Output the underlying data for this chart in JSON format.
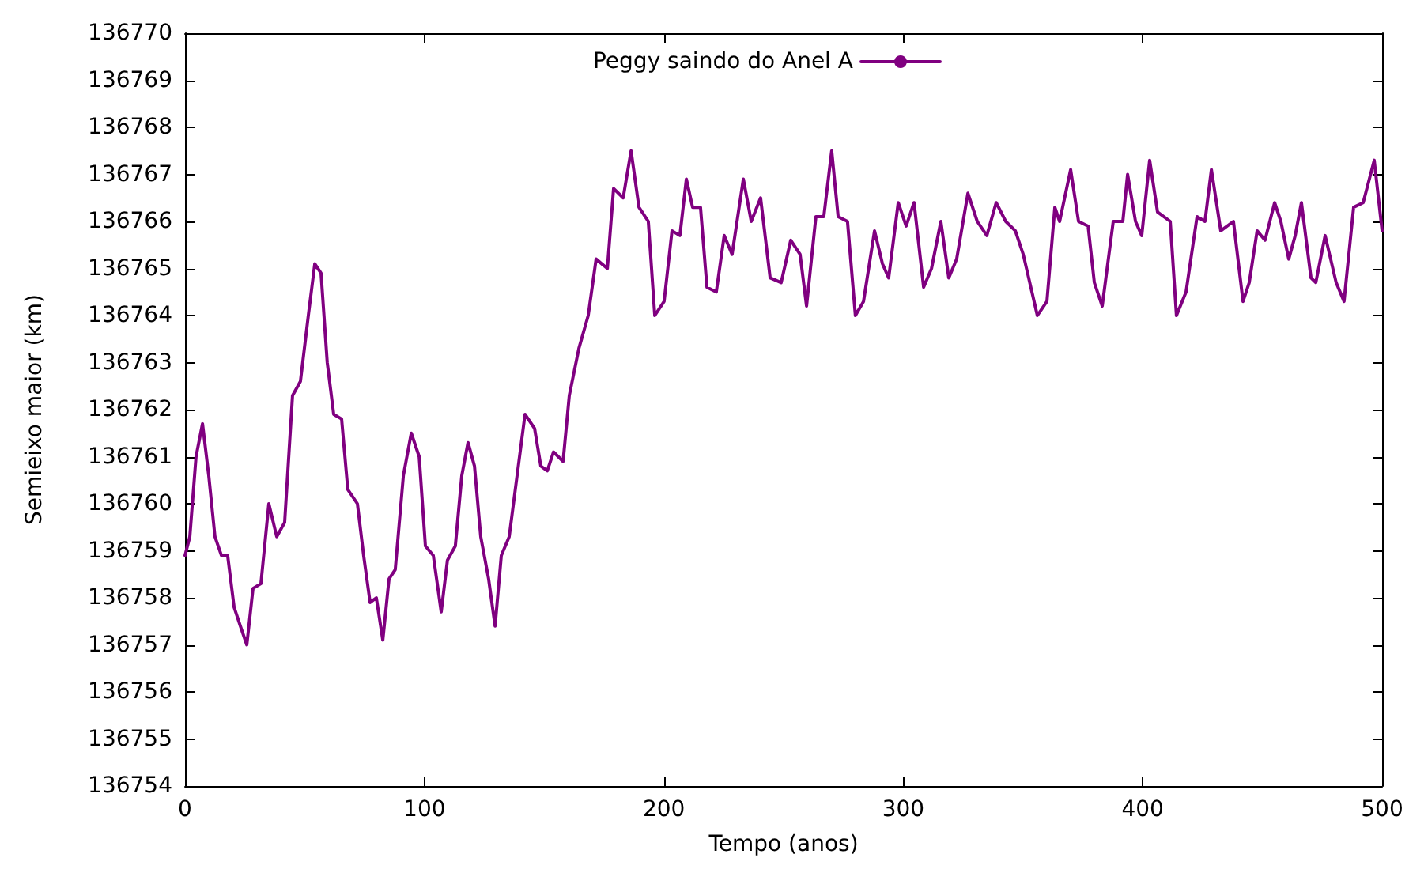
{
  "chart_data": {
    "type": "line",
    "xlabel": "Tempo (anos)",
    "ylabel": "Semieixo maior (km)",
    "xlim": [
      0,
      500
    ],
    "xticks": [
      0,
      100,
      200,
      300,
      400,
      500
    ],
    "ylim": [
      136754,
      136770
    ],
    "yticks": [
      136754,
      136755,
      136756,
      136757,
      136758,
      136759,
      136760,
      136761,
      136762,
      136763,
      136764,
      136765,
      136766,
      136767,
      136768,
      136769,
      136770
    ],
    "grid": false,
    "legend": "top",
    "marker": "none",
    "line_style": "solid",
    "series": [
      {
        "name": "Peggy saindo do Anel A",
        "color": "#800080",
        "x": [
          0,
          2,
          4.6,
          7.3,
          9.9,
          12.5,
          15.2,
          17.8,
          20.5,
          23.1,
          25.8,
          28.4,
          31.7,
          35,
          38.3,
          41.6,
          44.9,
          48.2,
          51.5,
          54.2,
          56.8,
          59.4,
          62.1,
          65.4,
          68,
          72,
          74.6,
          77.3,
          79.9,
          82.6,
          85.2,
          87.8,
          91.2,
          94.5,
          97.8,
          100.4,
          103.7,
          107,
          109.6,
          112.9,
          115.6,
          118.2,
          120.9,
          123.5,
          126.8,
          129.5,
          132.1,
          135.4,
          138.7,
          142,
          146,
          148.6,
          151.3,
          153.9,
          157.9,
          160.5,
          164.5,
          168.4,
          171.7,
          176.4,
          179,
          183,
          186.3,
          189.6,
          193.5,
          196.2,
          200.1,
          203.4,
          206.7,
          209.4,
          212,
          215.3,
          218,
          221.9,
          225.2,
          228.5,
          233.2,
          236.5,
          240.4,
          244.4,
          249,
          253,
          256.9,
          259.6,
          263.5,
          266.8,
          270.1,
          272.8,
          276.7,
          280,
          283.4,
          288,
          291.3,
          293.9,
          297.9,
          301.2,
          304.5,
          308.5,
          311.8,
          315.7,
          319,
          322.3,
          327,
          330.9,
          334.9,
          338.8,
          342.8,
          346.8,
          350.1,
          356,
          360,
          363.3,
          365.3,
          369.9,
          373.2,
          377.2,
          379.8,
          383.1,
          387.7,
          391.7,
          393.7,
          397,
          399.6,
          402.9,
          406.2,
          411.5,
          414.1,
          418.1,
          422.7,
          426,
          428.7,
          432.6,
          437.9,
          441.9,
          444.5,
          447.8,
          451.1,
          455.1,
          457.7,
          461,
          463.7,
          466.3,
          470.3,
          472.3,
          476.2,
          480.8,
          484.1,
          488.1,
          492.1,
          496.7,
          500
        ],
        "values": [
          136758.9,
          136759.3,
          136761.0,
          136761.7,
          136760.6,
          136759.3,
          136758.9,
          136758.9,
          136757.8,
          136757.4,
          136757.0,
          136758.2,
          136758.3,
          136760.0,
          136759.3,
          136759.6,
          136762.3,
          136762.6,
          136764.0,
          136765.1,
          136764.9,
          136763.0,
          136761.9,
          136761.8,
          136760.3,
          136760.0,
          136758.9,
          136757.9,
          136758.0,
          136757.1,
          136758.4,
          136758.6,
          136760.6,
          136761.5,
          136761.0,
          136759.1,
          136758.9,
          136757.7,
          136758.8,
          136759.1,
          136760.6,
          136761.3,
          136760.8,
          136759.3,
          136758.4,
          136757.4,
          136758.9,
          136759.3,
          136760.6,
          136761.9,
          136761.6,
          136760.8,
          136760.7,
          136761.1,
          136760.9,
          136762.3,
          136763.3,
          136764.0,
          136765.2,
          136765.0,
          136766.7,
          136766.5,
          136767.5,
          136766.3,
          136766.0,
          136764.0,
          136764.3,
          136765.8,
          136765.7,
          136766.9,
          136766.3,
          136766.3,
          136764.6,
          136764.5,
          136765.7,
          136765.3,
          136766.9,
          136766.0,
          136766.5,
          136764.8,
          136764.7,
          136765.6,
          136765.3,
          136764.2,
          136766.1,
          136766.1,
          136767.5,
          136766.1,
          136766.0,
          136764.0,
          136764.3,
          136765.8,
          136765.1,
          136764.8,
          136766.4,
          136765.9,
          136766.4,
          136764.6,
          136765.0,
          136766.0,
          136764.8,
          136765.2,
          136766.6,
          136766.0,
          136765.7,
          136766.4,
          136766.0,
          136765.8,
          136765.3,
          136764.0,
          136764.3,
          136766.3,
          136766.0,
          136767.1,
          136766.0,
          136765.9,
          136764.7,
          136764.2,
          136766.0,
          136766.0,
          136767.0,
          136766.0,
          136765.7,
          136767.3,
          136766.2,
          136766.0,
          136764.0,
          136764.5,
          136766.1,
          136766.0,
          136767.1,
          136765.8,
          136766.0,
          136764.3,
          136764.7,
          136765.8,
          136765.6,
          136766.4,
          136766.0,
          136765.2,
          136765.7,
          136766.4,
          136764.8,
          136764.7,
          136765.7,
          136764.7,
          136764.3,
          136766.3,
          136766.4,
          136767.3,
          136765.8
        ]
      }
    ]
  }
}
